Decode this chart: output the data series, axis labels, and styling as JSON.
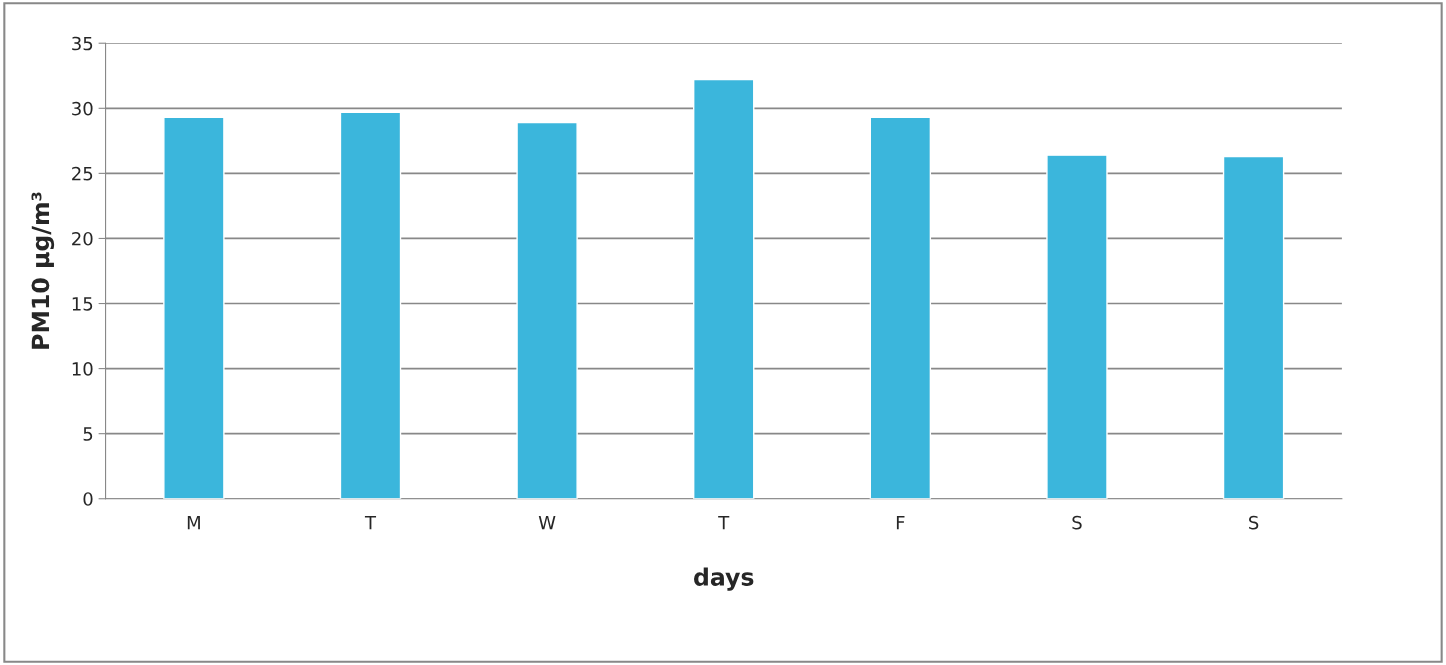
{
  "chart_data": {
    "type": "bar",
    "xlabel": "days",
    "ylabel": "PM10 µg/m³",
    "categories": [
      "M",
      "T",
      "W",
      "T",
      "F",
      "S",
      "S"
    ],
    "values": [
      29.3,
      29.7,
      28.9,
      32.2,
      29.3,
      26.4,
      26.3
    ],
    "color": "#3bb6dc",
    "ylim": [
      0,
      35
    ],
    "yticks": [
      0,
      5,
      10,
      15,
      20,
      25,
      30,
      35
    ],
    "grid": "y"
  }
}
